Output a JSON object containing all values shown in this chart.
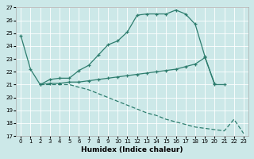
{
  "xlabel": "Humidex (Indice chaleur)",
  "bg_color": "#cce8e8",
  "grid_color": "#ffffff",
  "line_color": "#2d7d6e",
  "xlim": [
    -0.5,
    23.5
  ],
  "ylim": [
    17,
    27
  ],
  "xticks": [
    0,
    1,
    2,
    3,
    4,
    5,
    6,
    7,
    8,
    9,
    10,
    11,
    12,
    13,
    14,
    15,
    16,
    17,
    18,
    19,
    20,
    21,
    22,
    23
  ],
  "yticks": [
    17,
    18,
    19,
    20,
    21,
    22,
    23,
    24,
    25,
    26,
    27
  ],
  "line1_x": [
    0,
    1,
    2,
    3,
    4,
    5,
    6,
    7,
    8,
    9,
    10,
    11,
    12,
    13,
    14,
    15,
    16,
    17,
    18,
    19,
    20,
    21
  ],
  "line1_y": [
    24.8,
    22.2,
    21.0,
    21.4,
    21.5,
    21.5,
    22.1,
    22.5,
    23.3,
    24.1,
    24.4,
    25.1,
    26.4,
    26.5,
    26.5,
    26.5,
    26.8,
    26.5,
    25.7,
    23.2,
    21.0,
    21.0
  ],
  "line2_x": [
    2,
    3,
    4,
    5,
    6,
    7,
    8,
    9,
    10,
    11,
    12,
    13,
    14,
    15,
    16,
    17,
    18,
    19,
    20
  ],
  "line2_y": [
    21.0,
    21.1,
    21.1,
    21.2,
    21.2,
    21.3,
    21.4,
    21.5,
    21.6,
    21.7,
    21.8,
    21.9,
    22.0,
    22.1,
    22.2,
    22.4,
    22.6,
    23.1,
    21.1
  ],
  "line3_x": [
    2,
    3,
    4,
    5,
    6,
    7,
    8,
    9,
    10,
    11,
    12,
    13,
    14,
    15,
    16,
    17,
    18,
    19,
    20,
    21,
    22,
    23
  ],
  "line3_y": [
    21.0,
    21.0,
    21.0,
    21.0,
    20.8,
    20.6,
    20.3,
    20.0,
    19.7,
    19.4,
    19.1,
    18.8,
    18.6,
    18.3,
    18.1,
    17.9,
    17.7,
    17.6,
    17.5,
    17.4,
    18.3,
    17.2
  ]
}
